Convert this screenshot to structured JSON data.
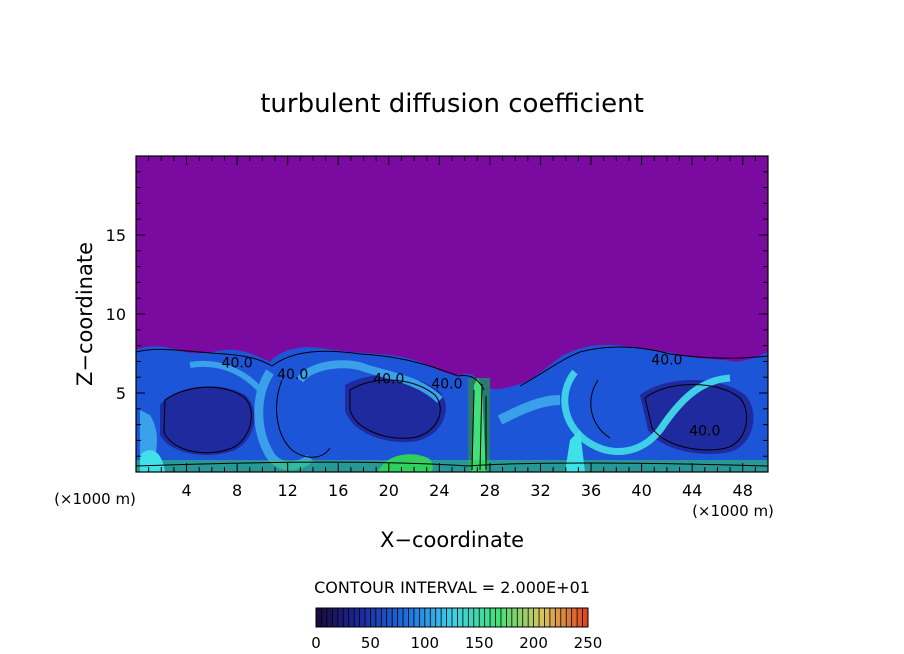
{
  "chart_data": {
    "type": "heatmap",
    "title": "turbulent diffusion coefficient",
    "xlabel": "X−coordinate",
    "ylabel": "Z−coordinate",
    "x_unit_left": "(×1000 m)",
    "x_unit_right": "(×1000 m)",
    "xlim": [
      0,
      50
    ],
    "ylim": [
      0,
      20
    ],
    "x_ticks": [
      4,
      8,
      12,
      16,
      20,
      24,
      28,
      32,
      36,
      40,
      44,
      48
    ],
    "y_ticks": [
      5,
      10,
      15
    ],
    "contour_interval_text": "CONTOUR INTERVAL = 2.000E+01",
    "contour_labels": [
      {
        "text": "40.0",
        "x": 8.0,
        "z": 6.6
      },
      {
        "text": "40.0",
        "x": 12.4,
        "z": 5.9
      },
      {
        "text": "40.0",
        "x": 20.0,
        "z": 5.6
      },
      {
        "text": "40.0",
        "x": 24.6,
        "z": 5.3
      },
      {
        "text": "40.0",
        "x": 42.0,
        "z": 6.8
      },
      {
        "text": "40.0",
        "x": 45.0,
        "z": 2.3
      }
    ],
    "colorbar": {
      "min": 0,
      "max": 250,
      "ticks": [
        0,
        50,
        100,
        150,
        200,
        250
      ],
      "colors": [
        "#1a0a3a",
        "#1c2aa0",
        "#1f6fe0",
        "#3fd0e8",
        "#42e07a",
        "#d8c460",
        "#e04020"
      ]
    },
    "background_value_color": "#7a0aa0",
    "field_colors": {
      "deep": "#1e2a9e",
      "mid": "#1d55d8",
      "light": "#3aa0ea",
      "cyan": "#40e0e8",
      "green": "#2fd060"
    }
  }
}
